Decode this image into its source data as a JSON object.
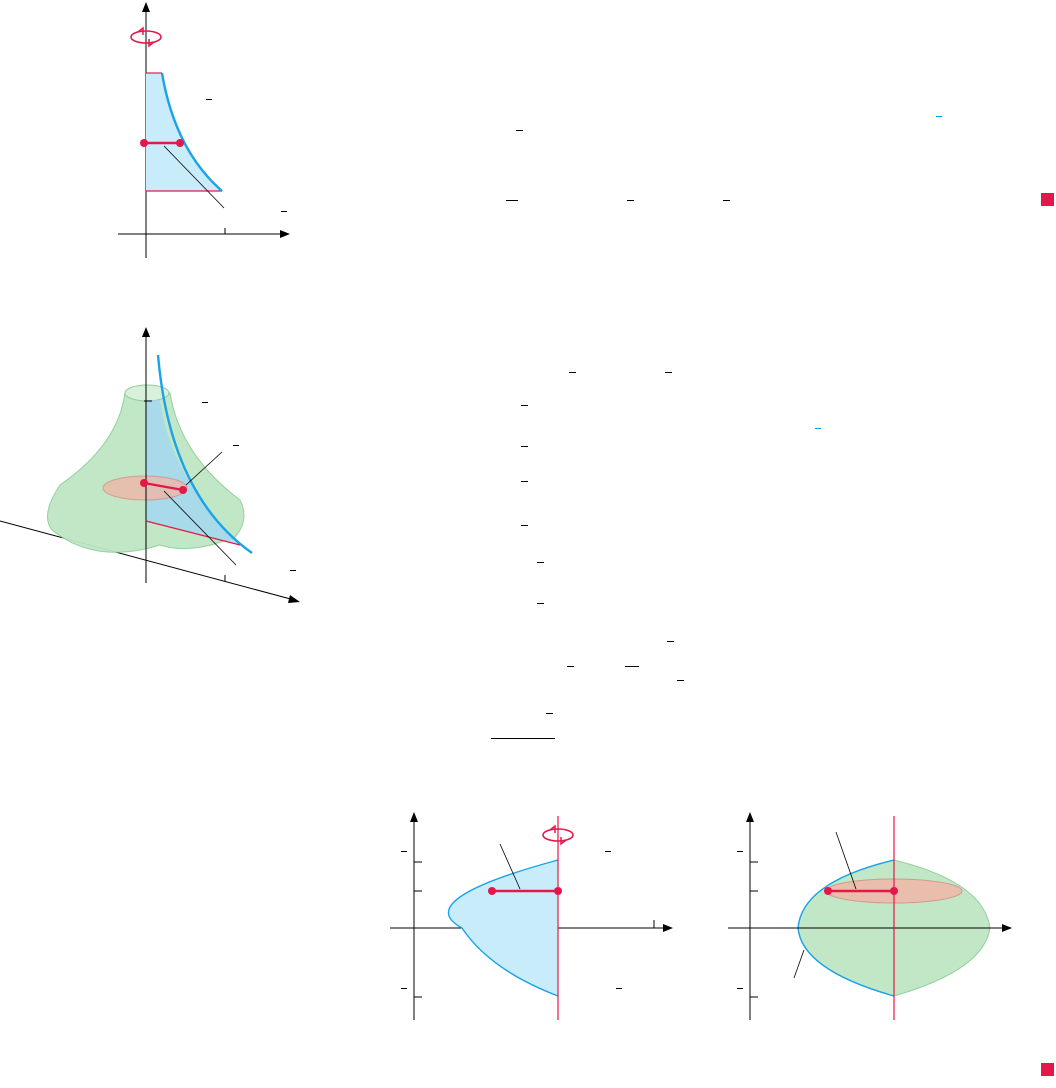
{
  "page": {
    "figures": [
      {
        "id": "fig-a",
        "kind": "region-with-axis-of-rotation"
      },
      {
        "id": "fig-b",
        "kind": "solid-of-revolution-3d"
      },
      {
        "id": "fig-c",
        "kind": "region-parabola-vertical-axis"
      },
      {
        "id": "fig-d",
        "kind": "solid-parabola-revolved"
      }
    ],
    "colors": {
      "curve": "#1aa3e6",
      "region_fill": "#c9ecfa",
      "accent_red": "#e4174b",
      "solid_green": "#bfe6c4",
      "disk_fill": "#f0b7a9",
      "axis": "#000000"
    },
    "icons": [
      "rotation-arrow-icon",
      "end-of-solution-square-icon"
    ]
  }
}
